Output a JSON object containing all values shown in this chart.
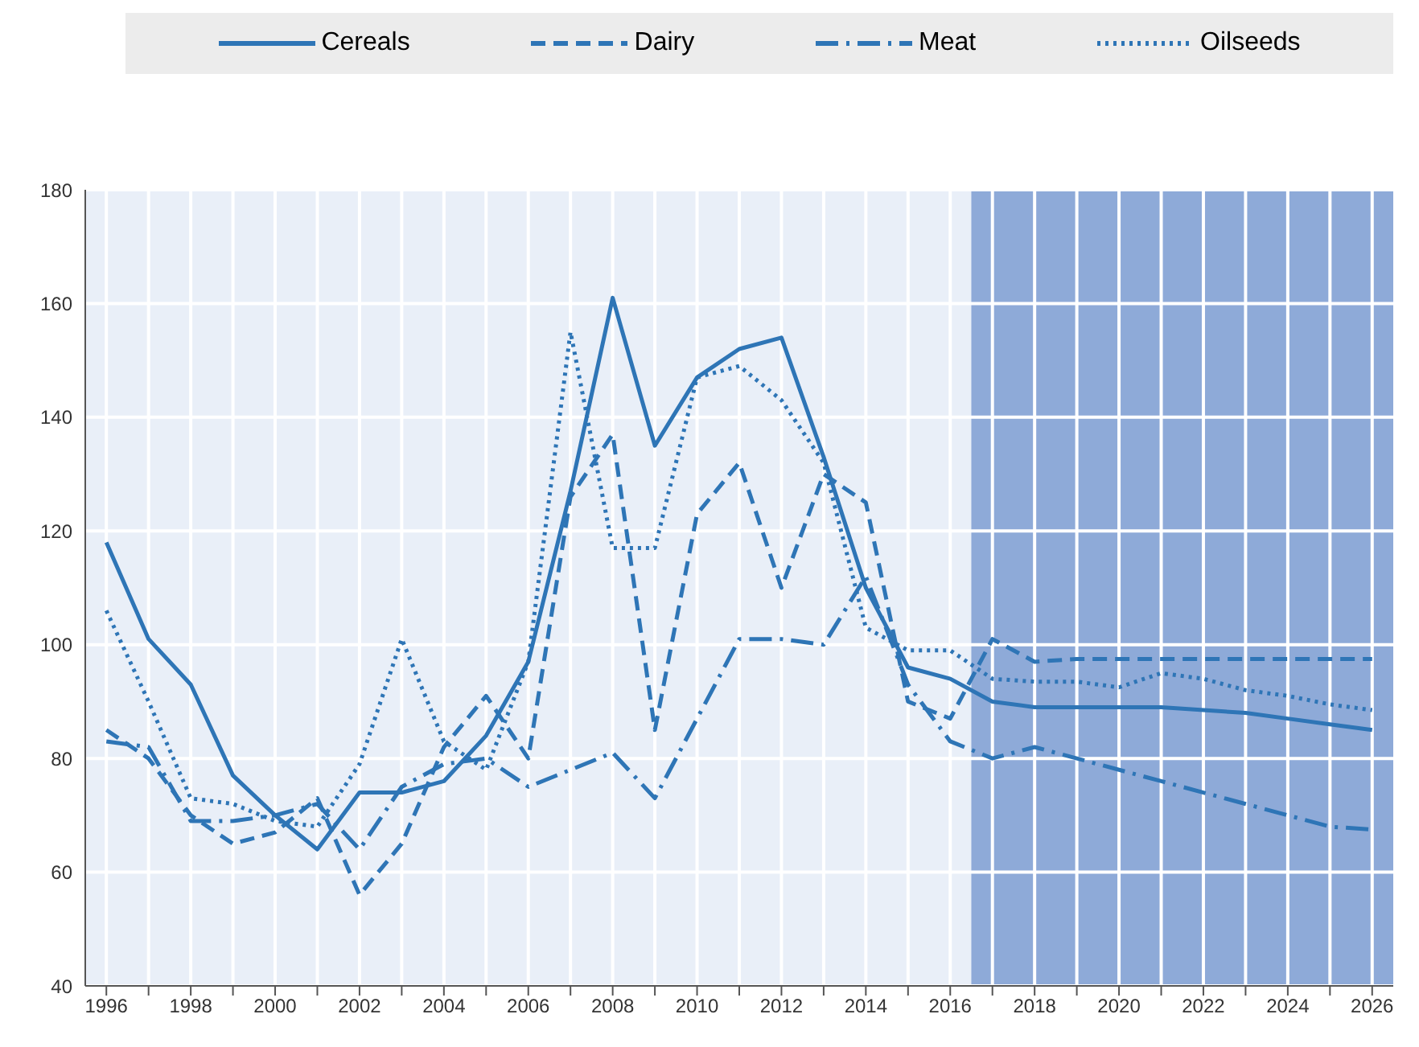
{
  "chart_data": {
    "type": "line",
    "x": [
      1996,
      1997,
      1998,
      1999,
      2000,
      2001,
      2002,
      2003,
      2004,
      2005,
      2006,
      2007,
      2008,
      2009,
      2010,
      2011,
      2012,
      2013,
      2014,
      2015,
      2016,
      2017,
      2018,
      2019,
      2020,
      2021,
      2022,
      2023,
      2024,
      2025,
      2026
    ],
    "series": [
      {
        "name": "Cereals",
        "color": "#2e75b6",
        "line_style": "solid",
        "values": [
          118,
          101,
          93,
          77,
          70,
          64,
          74,
          74,
          76,
          84,
          97,
          127,
          161,
          135,
          147,
          152,
          154,
          133,
          110,
          96,
          94,
          90,
          89,
          89,
          89,
          89,
          88.5,
          88,
          87,
          86,
          85
        ]
      },
      {
        "name": "Dairy",
        "color": "#2e75b6",
        "line_style": "dashed",
        "values": [
          85,
          80,
          70,
          65,
          67,
          73,
          56,
          65,
          82,
          91,
          80,
          126,
          137,
          85,
          123,
          132,
          110,
          130,
          125,
          90,
          87,
          101,
          97,
          97.5,
          97.5,
          97.5,
          97.5,
          97.5,
          97.5,
          97.5,
          97.5
        ]
      },
      {
        "name": "Meat",
        "color": "#2e75b6",
        "line_style": "dashdot",
        "values": [
          83,
          82,
          69,
          69,
          70,
          72,
          64,
          75,
          79,
          80,
          75,
          78,
          81,
          73,
          87,
          101,
          101,
          100,
          112,
          93,
          83,
          80,
          82,
          80,
          78,
          76,
          74,
          72,
          70,
          68,
          67.5
        ]
      },
      {
        "name": "Oilseeds",
        "color": "#2e75b6",
        "line_style": "dotted",
        "values": [
          106,
          90,
          73,
          72,
          69,
          68,
          79,
          101,
          83,
          78,
          97,
          155,
          117,
          117,
          147,
          149,
          143,
          132,
          103,
          99,
          99,
          94,
          93.5,
          93.5,
          92.5,
          95,
          94,
          92,
          91,
          89.5,
          88.5
        ]
      }
    ],
    "xlim": [
      1995.5,
      2026.5
    ],
    "xticks": [
      1996,
      {
        "value": 1997,
        "label": null
      },
      1998,
      {
        "value": 1999,
        "label": null
      },
      2000,
      {
        "value": 2001,
        "label": null
      },
      2002,
      {
        "value": 2003,
        "label": null
      },
      2004,
      {
        "value": 2005,
        "label": null
      },
      2006,
      {
        "value": 2007,
        "label": null
      },
      2008,
      {
        "value": 2009,
        "label": null
      },
      2010,
      {
        "value": 2011,
        "label": null
      },
      2012,
      {
        "value": 2013,
        "label": null
      },
      2014,
      {
        "value": 2015,
        "label": null
      },
      2016,
      {
        "value": 2017,
        "label": null
      },
      2018,
      {
        "value": 2019,
        "label": null
      },
      2020,
      {
        "value": 2021,
        "label": null
      },
      2022,
      {
        "value": 2023,
        "label": null
      },
      2024,
      {
        "value": 2025,
        "label": null
      },
      2026
    ],
    "ylim": [
      40,
      180
    ],
    "yticks": [
      40,
      60,
      80,
      100,
      120,
      140,
      160,
      180
    ],
    "bands": [
      {
        "axis": "x",
        "from": 2016.5,
        "to": 2026.5,
        "color": "#8eaad8"
      }
    ],
    "grid": true,
    "legend": "top",
    "marker": "none"
  }
}
